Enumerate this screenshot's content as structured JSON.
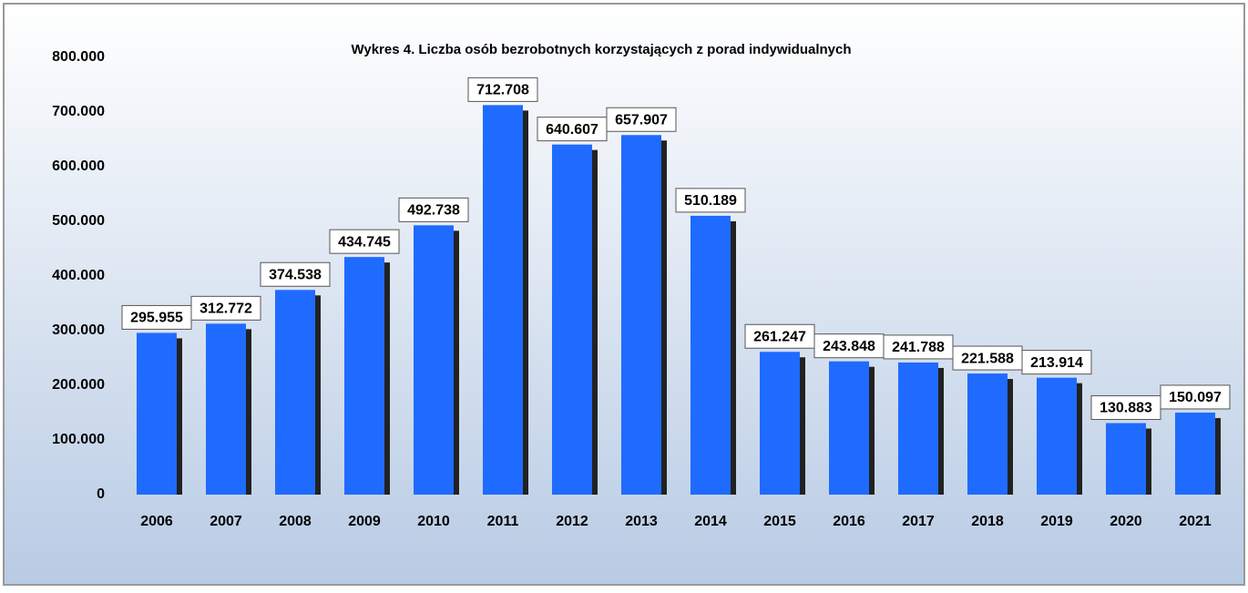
{
  "chart_data": {
    "type": "bar",
    "title": "Wykres 4. Liczba osób bezrobotnych korzystających z porad indywidualnych",
    "categories": [
      "2006",
      "2007",
      "2008",
      "2009",
      "2010",
      "2011",
      "2012",
      "2013",
      "2014",
      "2015",
      "2016",
      "2017",
      "2018",
      "2019",
      "2020",
      "2021"
    ],
    "values": [
      295955,
      312772,
      374538,
      434745,
      492738,
      712708,
      640607,
      657907,
      510189,
      261247,
      243848,
      241788,
      221588,
      213914,
      130883,
      150097
    ],
    "value_labels": [
      "295.955",
      "312.772",
      "374.538",
      "434.745",
      "492.738",
      "712.708",
      "640.607",
      "657.907",
      "510.189",
      "261.247",
      "243.848",
      "241.788",
      "221.588",
      "213.914",
      "130.883",
      "150.097"
    ],
    "color": "#1f6bff",
    "ylim": [
      0,
      800000
    ],
    "yticks": [
      0,
      {
        "value": 100000,
        "label": "100.000"
      },
      {
        "value": 200000,
        "label": "200.000"
      },
      {
        "value": 300000,
        "label": "300.000"
      },
      {
        "value": 400000,
        "label": "400.000"
      },
      {
        "value": 500000,
        "label": "500.000"
      },
      {
        "value": 600000,
        "label": "600.000"
      },
      {
        "value": 700000,
        "label": "700.000"
      },
      {
        "value": 800000,
        "label": "800.000"
      }
    ],
    "grid": false
  }
}
